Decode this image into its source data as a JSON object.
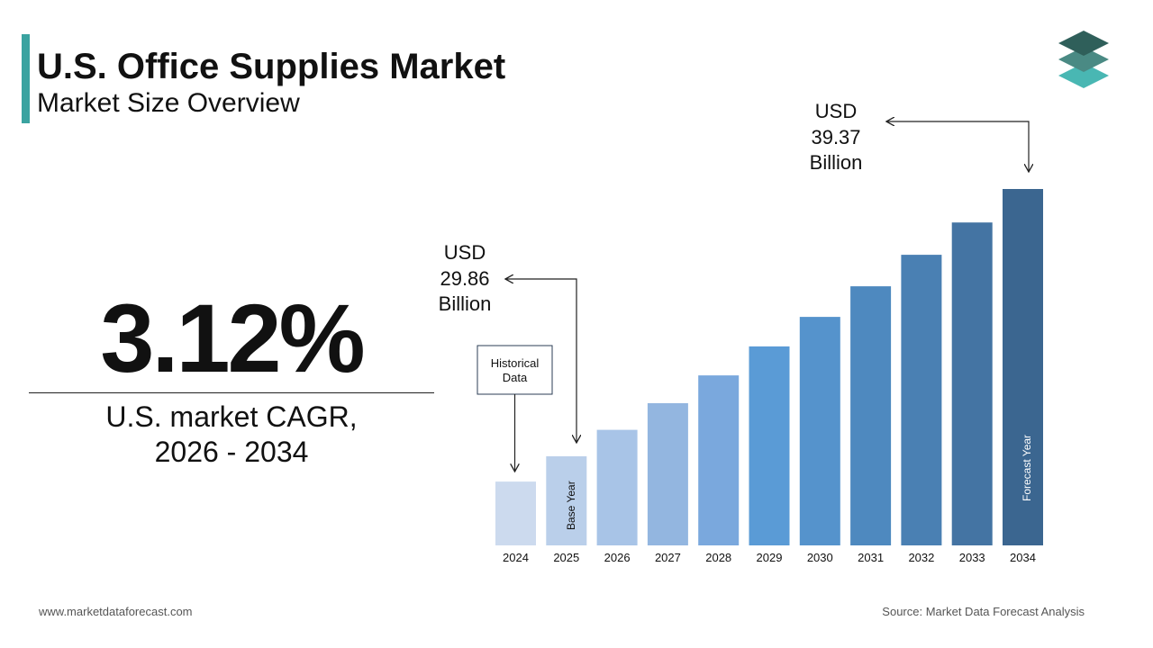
{
  "header": {
    "title": "U.S. Office Supplies Market",
    "subtitle": "Market Size Overview"
  },
  "logo": {
    "icon": "stacked-layers-logo-icon",
    "colors": [
      "#2f5f5a",
      "#4a8a84",
      "#49b7b3"
    ]
  },
  "kpi": {
    "cagr_value": "3.12%",
    "cagr_label_line1": "U.S. market CAGR,",
    "cagr_label_line2": "2026 - 2034"
  },
  "chart_data": {
    "type": "bar",
    "categories": [
      "2024",
      "2025",
      "2026",
      "2027",
      "2028",
      "2029",
      "2030",
      "2031",
      "2032",
      "2033",
      "2034"
    ],
    "values": [
      28.96,
      29.86,
      30.8,
      31.75,
      32.74,
      33.77,
      34.82,
      35.91,
      37.03,
      38.18,
      39.37
    ],
    "colors": [
      "#ccdaee",
      "#bacfea",
      "#a8c4e7",
      "#93b6e0",
      "#7aa8dd",
      "#5a9bd6",
      "#5593cc",
      "#4e89bf",
      "#4a80b3",
      "#4474a3",
      "#3b6690"
    ],
    "annotations": {
      "start_value": [
        "USD",
        "29.86",
        "Billion"
      ],
      "end_value": [
        "USD",
        "39.37",
        "Billion"
      ],
      "historical_box": [
        "Historical",
        "Data"
      ],
      "base_year_label": "Base Year",
      "forecast_year_label": "Forecast Year"
    }
  },
  "footer": {
    "website": "www.marketdataforecast.com",
    "source": "Source: Market Data Forecast Analysis"
  }
}
